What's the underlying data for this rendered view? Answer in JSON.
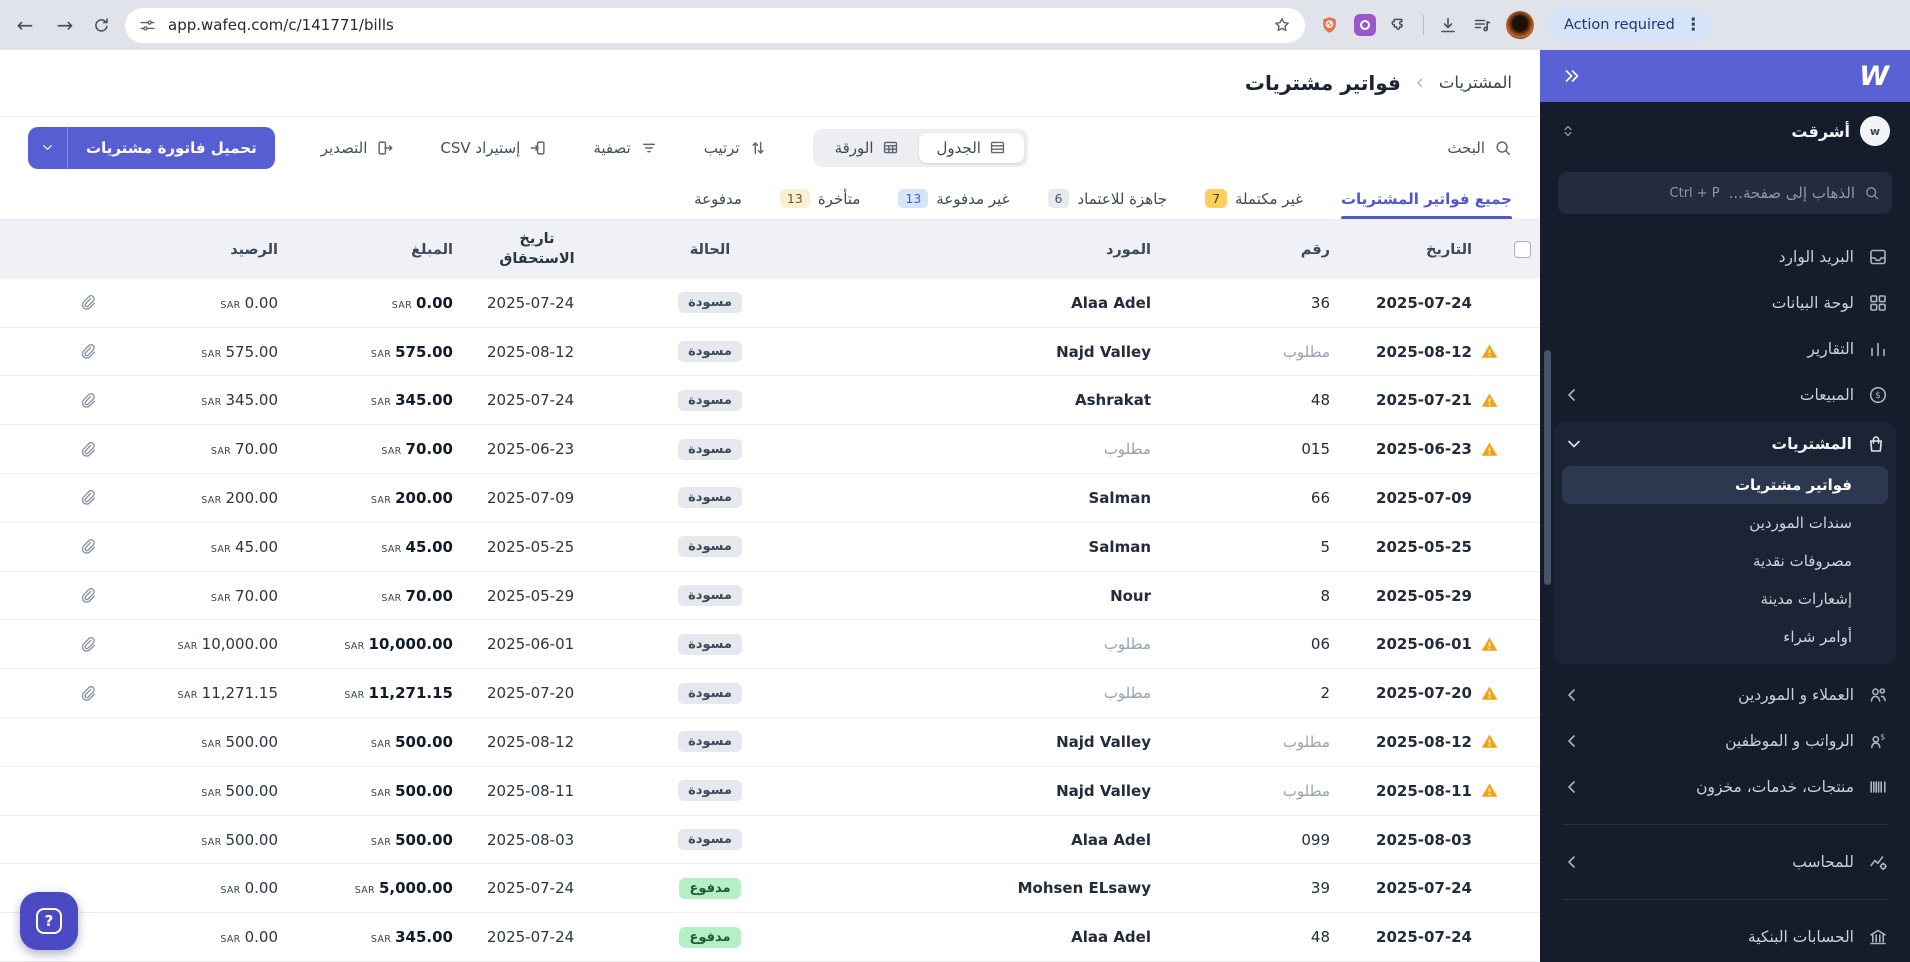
{
  "browser": {
    "url": "app.wafeq.com/c/141771/bills",
    "action_button": "Action required"
  },
  "sidebar": {
    "company_name": "أشرقت",
    "company_initial": "w",
    "goto_placeholder": "الذهاب إلى صفحة...",
    "goto_shortcut": "Ctrl + P",
    "nav_top": [
      {
        "name": "inbox",
        "icon": "inbox-icon",
        "label": "البريد الوارد",
        "collapsible": false
      },
      {
        "name": "dashboard",
        "icon": "dashboard-icon",
        "label": "لوحة البيانات",
        "collapsible": false
      },
      {
        "name": "reports",
        "icon": "reports-icon",
        "label": "التقارير",
        "collapsible": false
      },
      {
        "name": "sales",
        "icon": "sales-icon",
        "label": "المبيعات",
        "collapsible": true
      }
    ],
    "purchases_group": {
      "name": "purchases",
      "icon": "purchases-icon",
      "label": "المشتريات",
      "expanded": true,
      "children": [
        {
          "label": "فواتير مشتريات",
          "active": true
        },
        {
          "label": "سندات الموردين",
          "active": false
        },
        {
          "label": "مصروفات نقدية",
          "active": false
        },
        {
          "label": "إشعارات مدينة",
          "active": false
        },
        {
          "label": "أوامر شراء",
          "active": false
        }
      ]
    },
    "nav_mid": [
      {
        "name": "customers-suppliers",
        "icon": "customers-icon",
        "label": "العملاء و الموردين",
        "collapsible": true
      },
      {
        "name": "payroll-employees",
        "icon": "payroll-icon",
        "label": "الرواتب و الموظفين",
        "collapsible": true
      },
      {
        "name": "products-services-inventory",
        "icon": "inventory-icon",
        "label": "منتجات، خدمات، مخزون",
        "collapsible": true
      }
    ],
    "nav_accountant": [
      {
        "name": "for-accountant",
        "icon": "accountant-icon",
        "label": "للمحاسب",
        "collapsible": true
      }
    ],
    "nav_bottom": [
      {
        "name": "bank-accounts",
        "icon": "bank-icon",
        "label": "الحسابات البنكية",
        "collapsible": false
      }
    ]
  },
  "header": {
    "breadcrumb_parent": "المشتريات",
    "title": "فواتير مشتريات"
  },
  "toolbar": {
    "search_label": "البحث",
    "view_table": "الجدول",
    "view_paper": "الورقة",
    "sort_label": "ترتيب",
    "filter_label": "تصفية",
    "import_label": "إستيراد CSV",
    "export_label": "التصدير",
    "create_button": "تحميل فاتورة مشتريات"
  },
  "tabs": [
    {
      "label": "جميع فواتير المشتريات",
      "active": true,
      "badge": null,
      "badge_color": null
    },
    {
      "label": "غير مكتملة",
      "active": false,
      "badge": "7",
      "badge_color": "amber"
    },
    {
      "label": "جاهزة للاعتماد",
      "active": false,
      "badge": "6",
      "badge_color": "gray"
    },
    {
      "label": "غير مدفوعة",
      "active": false,
      "badge": "13",
      "badge_color": "blue"
    },
    {
      "label": "متأخرة",
      "active": false,
      "badge": "13",
      "badge_color": "cream"
    },
    {
      "label": "مدفوعة",
      "active": false,
      "badge": null,
      "badge_color": null
    }
  ],
  "table": {
    "currency": "SAR",
    "headers": {
      "date": "التاريخ",
      "number": "رقم",
      "supplier": "المورد",
      "status": "الحالة",
      "due": "تاريخ الاستحقاق",
      "amount": "المبلغ",
      "balance": "الرصيد"
    },
    "rows": [
      {
        "warn": false,
        "date": "2025-07-24",
        "number": "36",
        "number_muted": false,
        "supplier": "Alaa Adel",
        "supplier_muted": false,
        "status": "مسودة",
        "status_color": "gray",
        "due": "2025-07-24",
        "amount": "0.00",
        "balance": "0.00",
        "attachment": true
      },
      {
        "warn": true,
        "date": "2025-08-12",
        "number": "مطلوب",
        "number_muted": true,
        "supplier": "Najd Valley",
        "supplier_muted": false,
        "status": "مسودة",
        "status_color": "gray",
        "due": "2025-08-12",
        "amount": "575.00",
        "balance": "575.00",
        "attachment": true
      },
      {
        "warn": true,
        "date": "2025-07-21",
        "number": "48",
        "number_muted": false,
        "supplier": "Ashrakat",
        "supplier_muted": false,
        "status": "مسودة",
        "status_color": "gray",
        "due": "2025-07-24",
        "amount": "345.00",
        "balance": "345.00",
        "attachment": true
      },
      {
        "warn": true,
        "date": "2025-06-23",
        "number": "015",
        "number_muted": false,
        "supplier": "مطلوب",
        "supplier_muted": true,
        "status": "مسودة",
        "status_color": "gray",
        "due": "2025-06-23",
        "amount": "70.00",
        "balance": "70.00",
        "attachment": true
      },
      {
        "warn": false,
        "date": "2025-07-09",
        "number": "66",
        "number_muted": false,
        "supplier": "Salman",
        "supplier_muted": false,
        "status": "مسودة",
        "status_color": "gray",
        "due": "2025-07-09",
        "amount": "200.00",
        "balance": "200.00",
        "attachment": true
      },
      {
        "warn": false,
        "date": "2025-05-25",
        "number": "5",
        "number_muted": false,
        "supplier": "Salman",
        "supplier_muted": false,
        "status": "مسودة",
        "status_color": "gray",
        "due": "2025-05-25",
        "amount": "45.00",
        "balance": "45.00",
        "attachment": true
      },
      {
        "warn": false,
        "date": "2025-05-29",
        "number": "8",
        "number_muted": false,
        "supplier": "Nour",
        "supplier_muted": false,
        "status": "مسودة",
        "status_color": "gray",
        "due": "2025-05-29",
        "amount": "70.00",
        "balance": "70.00",
        "attachment": true
      },
      {
        "warn": true,
        "date": "2025-06-01",
        "number": "06",
        "number_muted": false,
        "supplier": "مطلوب",
        "supplier_muted": true,
        "status": "مسودة",
        "status_color": "gray",
        "due": "2025-06-01",
        "amount": "10,000.00",
        "balance": "10,000.00",
        "attachment": true
      },
      {
        "warn": true,
        "date": "2025-07-20",
        "number": "2",
        "number_muted": false,
        "supplier": "مطلوب",
        "supplier_muted": true,
        "status": "مسودة",
        "status_color": "gray",
        "due": "2025-07-20",
        "amount": "11,271.15",
        "balance": "11,271.15",
        "attachment": true
      },
      {
        "warn": true,
        "date": "2025-08-12",
        "number": "مطلوب",
        "number_muted": true,
        "supplier": "Najd Valley",
        "supplier_muted": false,
        "status": "مسودة",
        "status_color": "gray",
        "due": "2025-08-12",
        "amount": "500.00",
        "balance": "500.00",
        "attachment": false
      },
      {
        "warn": true,
        "date": "2025-08-11",
        "number": "مطلوب",
        "number_muted": true,
        "supplier": "Najd Valley",
        "supplier_muted": false,
        "status": "مسودة",
        "status_color": "gray",
        "due": "2025-08-11",
        "amount": "500.00",
        "balance": "500.00",
        "attachment": false
      },
      {
        "warn": false,
        "date": "2025-08-03",
        "number": "099",
        "number_muted": false,
        "supplier": "Alaa Adel",
        "supplier_muted": false,
        "status": "مسودة",
        "status_color": "gray",
        "due": "2025-08-03",
        "amount": "500.00",
        "balance": "500.00",
        "attachment": false
      },
      {
        "warn": false,
        "date": "2025-07-24",
        "number": "39",
        "number_muted": false,
        "supplier": "Mohsen ELsawy",
        "supplier_muted": false,
        "status": "مدفوع",
        "status_color": "green",
        "due": "2025-07-24",
        "amount": "5,000.00",
        "balance": "0.00",
        "attachment": false
      },
      {
        "warn": false,
        "date": "2025-07-24",
        "number": "48",
        "number_muted": false,
        "supplier": "Alaa Adel",
        "supplier_muted": false,
        "status": "مدفوع",
        "status_color": "green",
        "due": "2025-07-24",
        "amount": "345.00",
        "balance": "0.00",
        "attachment": false
      }
    ]
  }
}
